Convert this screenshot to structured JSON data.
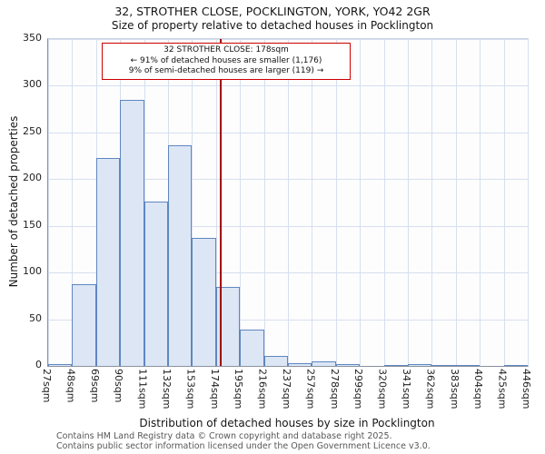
{
  "title": "32, STROTHER CLOSE, POCKLINGTON, YORK, YO42 2GR",
  "subtitle": "Size of property relative to detached houses in Pocklington",
  "chart_data": {
    "type": "bar",
    "title": "32, STROTHER CLOSE, POCKLINGTON, YORK, YO42 2GR",
    "xlabel": "Distribution of detached houses by size in Pocklington",
    "ylabel": "Number of detached properties",
    "ylim": [
      0,
      350
    ],
    "yticks": [
      0,
      50,
      100,
      150,
      200,
      250,
      300,
      350
    ],
    "grid": true,
    "bin_labels": [
      "27sqm",
      "48sqm",
      "69sqm",
      "90sqm",
      "111sqm",
      "132sqm",
      "153sqm",
      "174sqm",
      "195sqm",
      "216sqm",
      "237sqm",
      "257sqm",
      "278sqm",
      "299sqm",
      "320sqm",
      "341sqm",
      "362sqm",
      "383sqm",
      "404sqm",
      "425sqm",
      "446sqm"
    ],
    "bin_edges": [
      27,
      48,
      69,
      90,
      111,
      132,
      153,
      174,
      195,
      216,
      237,
      257,
      278,
      299,
      320,
      341,
      362,
      383,
      404,
      425,
      446
    ],
    "values": [
      2,
      88,
      223,
      285,
      176,
      236,
      137,
      85,
      39,
      11,
      3,
      5,
      2,
      0,
      1,
      2,
      1,
      1,
      0,
      1
    ],
    "marker": {
      "value": 178,
      "label": "178sqm",
      "color": "#a40000"
    },
    "annotation": {
      "line1": "32 STROTHER CLOSE: 178sqm",
      "line2": "← 91% of detached houses are smaller (1,176)",
      "line3": "9% of semi-detached houses are larger (119) →"
    },
    "colors": {
      "bar_fill": "#dce6f5",
      "bar_border": "#5f86c0",
      "grid": "#d6dfee",
      "annotation_border": "#cc0000"
    }
  },
  "footer": {
    "line1": "Contains HM Land Registry data © Crown copyright and database right 2025.",
    "line2": "Contains public sector information licensed under the Open Government Licence v3.0."
  }
}
